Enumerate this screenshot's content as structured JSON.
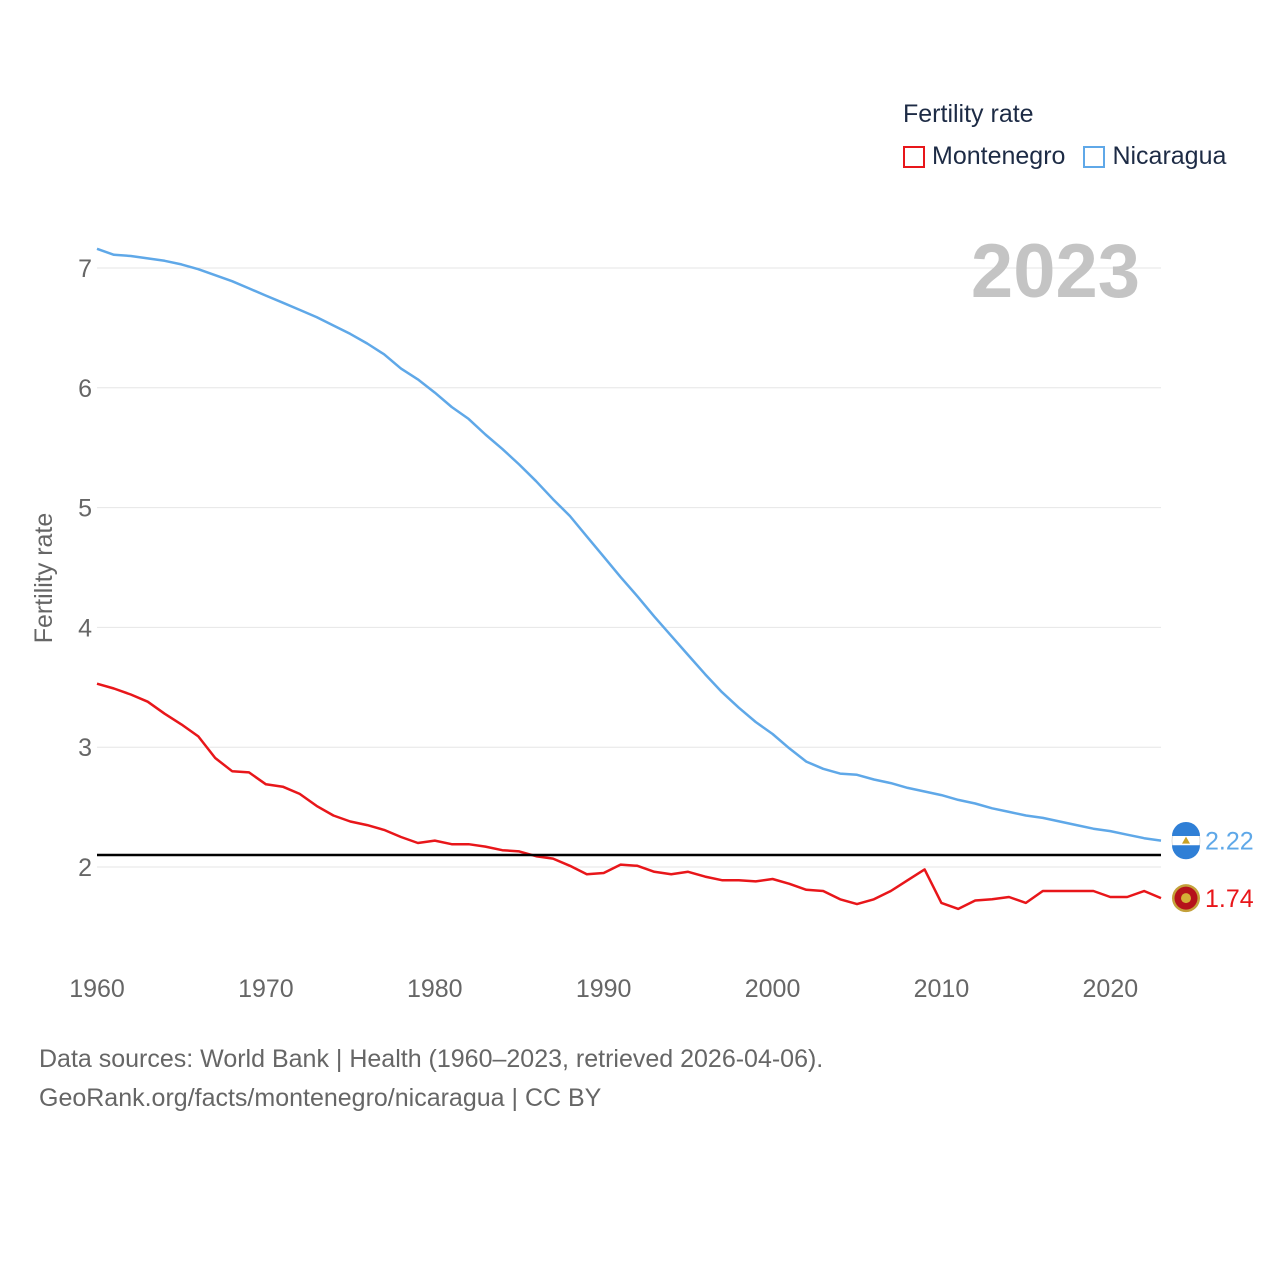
{
  "legend": {
    "title": "Fertility rate",
    "items": [
      {
        "name": "Montenegro",
        "color": "#e8161a"
      },
      {
        "name": "Nicaragua",
        "color": "#5fa8e8"
      }
    ]
  },
  "year_label": "2023",
  "footer": {
    "line1": "Data sources: World Bank | Health (1960–2023, retrieved 2026-04-06).",
    "line2": "GeoRank.org/facts/montenegro/nicaragua | CC BY"
  },
  "chart_data": {
    "type": "line",
    "title": "Fertility rate",
    "xlabel": "",
    "ylabel": "Fertility rate",
    "xlim": [
      1960,
      2023
    ],
    "ylim": [
      1.2,
      7.4
    ],
    "x_ticks": [
      1960,
      1970,
      1980,
      1990,
      2000,
      2010,
      2020
    ],
    "y_ticks": [
      2,
      3,
      4,
      5,
      6,
      7
    ],
    "grid": true,
    "reference_line": {
      "y": 2.1,
      "color": "#000000"
    },
    "x": [
      1960,
      1961,
      1962,
      1963,
      1964,
      1965,
      1966,
      1967,
      1968,
      1969,
      1970,
      1971,
      1972,
      1973,
      1974,
      1975,
      1976,
      1977,
      1978,
      1979,
      1980,
      1981,
      1982,
      1983,
      1984,
      1985,
      1986,
      1987,
      1988,
      1989,
      1990,
      1991,
      1992,
      1993,
      1994,
      1995,
      1996,
      1997,
      1998,
      1999,
      2000,
      2001,
      2002,
      2003,
      2004,
      2005,
      2006,
      2007,
      2008,
      2009,
      2010,
      2011,
      2012,
      2013,
      2014,
      2015,
      2016,
      2017,
      2018,
      2019,
      2020,
      2021,
      2022,
      2023
    ],
    "series": [
      {
        "name": "Montenegro",
        "color": "#e8161a",
        "end_label": "1.74",
        "values": [
          3.53,
          3.49,
          3.44,
          3.38,
          3.28,
          3.19,
          3.09,
          2.91,
          2.8,
          2.79,
          2.69,
          2.67,
          2.61,
          2.51,
          2.43,
          2.38,
          2.35,
          2.31,
          2.25,
          2.2,
          2.22,
          2.19,
          2.19,
          2.17,
          2.14,
          2.13,
          2.09,
          2.07,
          2.01,
          1.94,
          1.95,
          2.02,
          2.01,
          1.96,
          1.94,
          1.96,
          1.92,
          1.89,
          1.89,
          1.88,
          1.9,
          1.86,
          1.81,
          1.8,
          1.73,
          1.69,
          1.73,
          1.8,
          1.89,
          1.98,
          1.7,
          1.65,
          1.72,
          1.73,
          1.75,
          1.7,
          1.8,
          1.8,
          1.8,
          1.8,
          1.75,
          1.75,
          1.8,
          1.74
        ]
      },
      {
        "name": "Nicaragua",
        "color": "#5fa8e8",
        "end_label": "2.22",
        "values": [
          7.16,
          7.11,
          7.1,
          7.08,
          7.06,
          7.03,
          6.99,
          6.94,
          6.89,
          6.83,
          6.77,
          6.71,
          6.65,
          6.59,
          6.52,
          6.45,
          6.37,
          6.28,
          6.16,
          6.07,
          5.96,
          5.84,
          5.74,
          5.61,
          5.49,
          5.36,
          5.22,
          5.07,
          4.93,
          4.76,
          4.59,
          4.42,
          4.26,
          4.09,
          3.93,
          3.77,
          3.61,
          3.46,
          3.33,
          3.21,
          3.11,
          2.99,
          2.88,
          2.82,
          2.78,
          2.77,
          2.73,
          2.7,
          2.66,
          2.63,
          2.6,
          2.56,
          2.53,
          2.49,
          2.46,
          2.43,
          2.41,
          2.38,
          2.35,
          2.32,
          2.3,
          2.27,
          2.24,
          2.22
        ]
      }
    ]
  }
}
